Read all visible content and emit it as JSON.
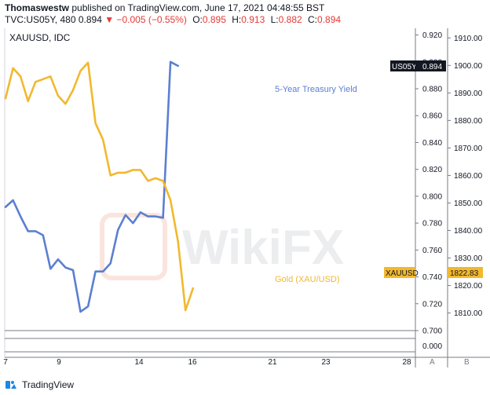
{
  "header": {
    "user": "Thomaswestw",
    "published_text": "published on TradingView.com, June 17, 2021 04:48:55 BST",
    "symbol": "TVC:US05Y, 480",
    "last": "0.894",
    "change": "−0.005 (−0.55%)",
    "o_label": "O:",
    "o_value": "0.895",
    "h_label": "H:",
    "h_value": "0.913",
    "l_label": "L:",
    "l_value": "0.882",
    "c_label": "C:",
    "c_value": "0.894"
  },
  "footer": {
    "brand": "TradingView"
  },
  "colors": {
    "treasury": "#5b7fd1",
    "gold": "#f2b82e",
    "badge_dark": "#131722",
    "badge_gold": "#f2b82e"
  },
  "chart_data": {
    "type": "line",
    "pane_title": "XAUUSD, IDC",
    "watermark": "WikiFX",
    "x_ticks": [
      "7",
      "9",
      "14",
      "16",
      "21",
      "23",
      "28"
    ],
    "y_left": {
      "ticks": [
        "0.920",
        "0.900",
        "0.880",
        "0.860",
        "0.840",
        "0.820",
        "0.800",
        "0.780",
        "0.760",
        "0.740",
        "0.720",
        "0.700"
      ],
      "range": [
        0.7,
        0.925
      ]
    },
    "y_right": {
      "ticks": [
        "1910.00",
        "1900.00",
        "1890.00",
        "1880.00",
        "1870.00",
        "1860.00",
        "1850.00",
        "1840.00",
        "1830.00",
        "1820.00",
        "1810.00"
      ],
      "range": [
        1803.6,
        1913.5
      ]
    },
    "lower_pane": {
      "tick": "0.000"
    },
    "scale_labels": [
      "A",
      "B"
    ],
    "series": [
      {
        "name": "5-Year Treasury Yield",
        "axis": "left",
        "values": [
          0.792,
          0.797,
          0.785,
          0.774,
          0.774,
          0.771,
          0.746,
          0.753,
          0.747,
          0.745,
          0.714,
          0.718,
          0.744,
          0.744,
          0.75,
          0.775,
          0.786,
          0.78,
          0.788,
          0.785,
          0.785,
          0.784,
          0.9,
          0.897
        ]
      },
      {
        "name": "Gold (XAU/USD)",
        "axis": "right",
        "values": [
          1888,
          1899,
          1896,
          1887,
          1894,
          1895,
          1896,
          1889,
          1886,
          1891,
          1898,
          1901,
          1879,
          1873,
          1860,
          1861,
          1861,
          1862,
          1862,
          1858,
          1859,
          1858,
          1851,
          1836,
          1811,
          1819
        ]
      }
    ],
    "badges": [
      {
        "label": "US05Y",
        "value": "0.894",
        "style": "dark"
      },
      {
        "label": "XAUUSD",
        "value": "1822.83",
        "style": "gold"
      }
    ]
  }
}
